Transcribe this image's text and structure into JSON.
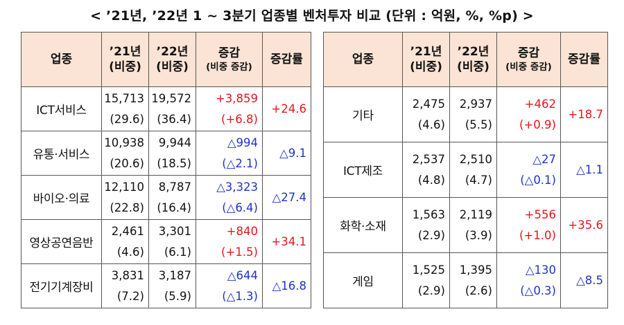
{
  "title": "< ’21년, ’22년 1 ~ 3분기 업종별 벤처투자 비교 (단위 : 억원, %, %p) >",
  "headers": {
    "industry": "업종",
    "y21": "’21년",
    "y22": "’22년",
    "share": "(비중)",
    "change": "증감",
    "change_sub": "(비중 증감)",
    "rate": "증감률"
  },
  "left": [
    {
      "name": "ICT서비스",
      "v21": "15,713",
      "s21": "(29.6)",
      "v22": "19,572",
      "s22": "(36.4)",
      "chg": "+3,859",
      "schg": "(+6.8)",
      "rate": "+24.6",
      "dir": "up"
    },
    {
      "name": "유통·서비스",
      "v21": "10,938",
      "s21": "(20.6)",
      "v22": "9,944",
      "s22": "(18.5)",
      "chg": "△994",
      "schg": "(△2.1)",
      "rate": "△9.1",
      "dir": "down"
    },
    {
      "name": "바이오·의료",
      "v21": "12,110",
      "s21": "(22.8)",
      "v22": "8,787",
      "s22": "(16.4)",
      "chg": "△3,323",
      "schg": "(△6.4)",
      "rate": "△27.4",
      "dir": "down"
    },
    {
      "name": "영상공연음반",
      "v21": "2,461",
      "s21": "(4.6)",
      "v22": "3,301",
      "s22": "(6.1)",
      "chg": "+840",
      "schg": "(+1.5)",
      "rate": "+34.1",
      "dir": "up"
    },
    {
      "name": "전기기계장비",
      "v21": "3,831",
      "s21": "(7.2)",
      "v22": "3,187",
      "s22": "(5.9)",
      "chg": "△644",
      "schg": "(△1.3)",
      "rate": "△16.8",
      "dir": "down"
    }
  ],
  "right": [
    {
      "name": "기타",
      "v21": "2,475",
      "s21": "(4.6)",
      "v22": "2,937",
      "s22": "(5.5)",
      "chg": "+462",
      "schg": "(+0.9)",
      "rate": "+18.7",
      "dir": "up"
    },
    {
      "name": "ICT제조",
      "v21": "2,537",
      "s21": "(4.8)",
      "v22": "2,510",
      "s22": "(4.7)",
      "chg": "△27",
      "schg": "(△0.1)",
      "rate": "△1.1",
      "dir": "down"
    },
    {
      "name": "화학·소재",
      "v21": "1,563",
      "s21": "(2.9)",
      "v22": "2,119",
      "s22": "(3.9)",
      "chg": "+556",
      "schg": "(+1.0)",
      "rate": "+35.6",
      "dir": "up"
    },
    {
      "name": "게임",
      "v21": "1,525",
      "s21": "(2.9)",
      "v22": "1,395",
      "s22": "(2.6)",
      "chg": "△130",
      "schg": "(△0.3)",
      "rate": "△8.5",
      "dir": "down"
    }
  ],
  "colors": {
    "increase": "#e8141b",
    "decrease": "#1d34c6",
    "header_bg": "#fbe4d5"
  }
}
